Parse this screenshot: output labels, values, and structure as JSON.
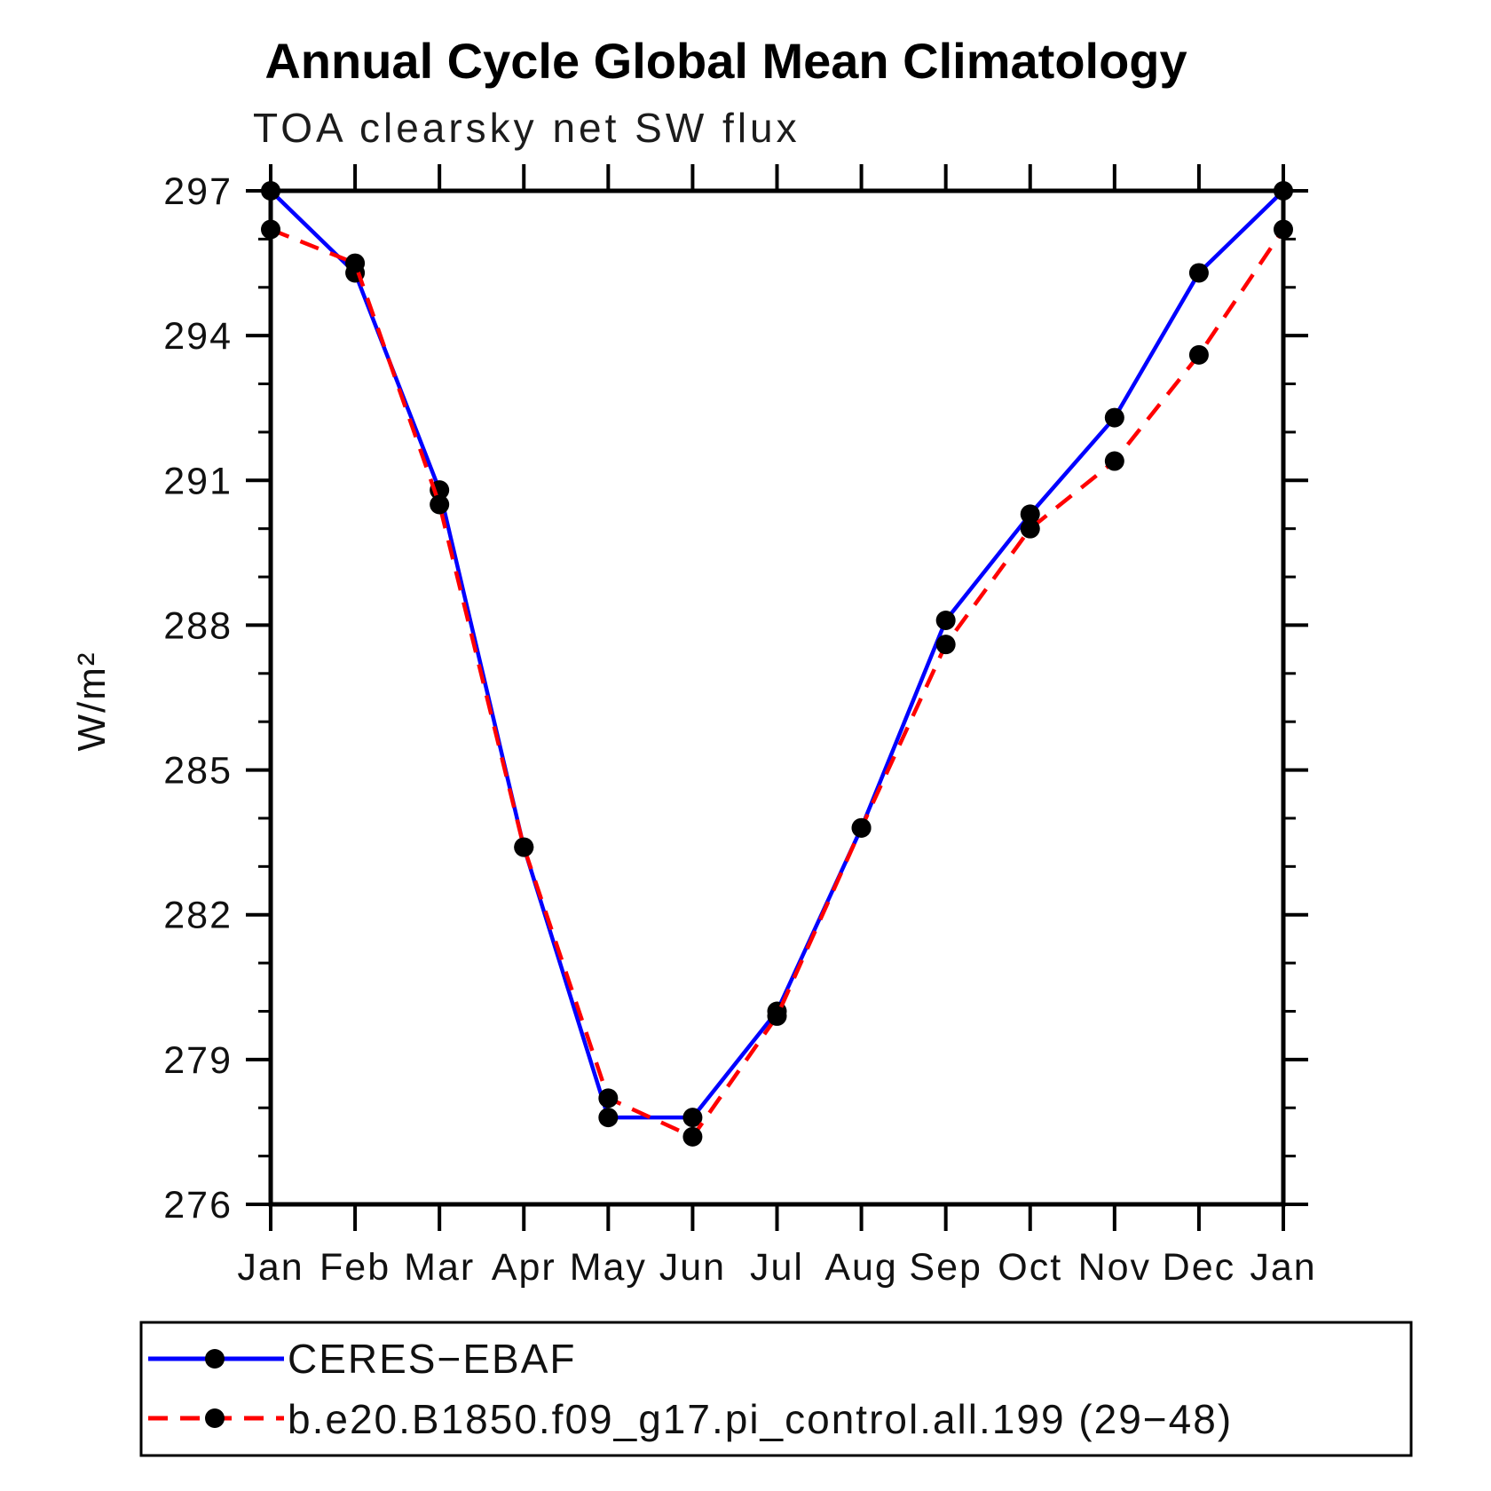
{
  "chart_data": {
    "type": "line",
    "title": "Annual Cycle Global Mean Climatology",
    "subtitle": "TOA clearsky net SW flux",
    "ylabel": "W/m²",
    "xlabel": "",
    "x_categories": [
      "Jan",
      "Feb",
      "Mar",
      "Apr",
      "May",
      "Jun",
      "Jul",
      "Aug",
      "Sep",
      "Oct",
      "Nov",
      "Dec",
      "Jan"
    ],
    "ylim": [
      276,
      297
    ],
    "y_major_ticks": [
      276,
      279,
      282,
      285,
      288,
      291,
      294,
      297
    ],
    "y_minor_step": 1,
    "grid": false,
    "legend_position": "bottom",
    "marker": "black-dot",
    "marker_color": "#000000",
    "series": [
      {
        "name": "CERES−EBAF",
        "color": "#0000ff",
        "line_style": "solid",
        "values": [
          297.0,
          295.3,
          290.8,
          283.4,
          277.8,
          277.8,
          280.0,
          283.8,
          288.1,
          290.3,
          292.3,
          295.3,
          297.0
        ]
      },
      {
        "name": "b.e20.B1850.f09_g17.pi_control.all.199 (29−48)",
        "color": "#ff0000",
        "line_style": "dashed",
        "values": [
          296.2,
          295.5,
          290.5,
          283.4,
          278.2,
          277.4,
          279.9,
          283.8,
          287.6,
          290.0,
          291.4,
          293.6,
          296.2
        ]
      }
    ]
  }
}
